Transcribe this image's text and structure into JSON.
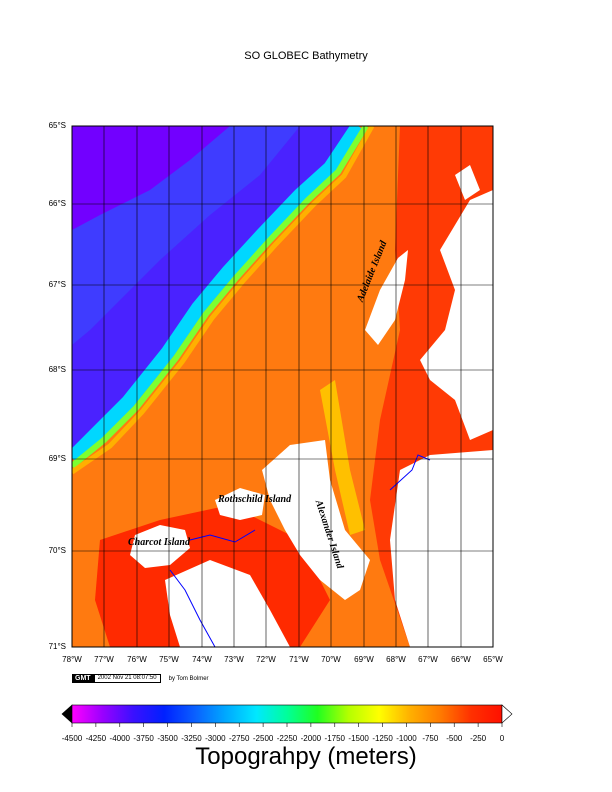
{
  "title": "SO GLOBEC Bathymetry",
  "map": {
    "lat_labels": [
      "65°S",
      "66°S",
      "67°S",
      "68°S",
      "69°S",
      "70°S",
      "71°S"
    ],
    "lon_labels": [
      "78°W",
      "77°W",
      "76°W",
      "75°W",
      "74°W",
      "73°W",
      "72°W",
      "71°W",
      "70°W",
      "69°W",
      "68°W",
      "67°W",
      "66°W",
      "65°W"
    ],
    "island_labels": {
      "adelaide": "Adelaide Island",
      "rothschild": "Rothschild Island",
      "charcot": "Charcot Island",
      "alexander": "Alexander Island"
    },
    "colors": {
      "deep": "#6a00ff",
      "mid_blue": "#1d4dff",
      "slope_cyan": "#00d7ff",
      "shelf_orange": "#ff7a10",
      "shallow_red": "#ff2a00",
      "land": "#ffffff",
      "boundary": "#0000ff"
    }
  },
  "gmt_stamp": {
    "logo": "GMT",
    "date": "2002 Nov 21 08:07:50",
    "author": "by Tom Bolmer"
  },
  "colorbar": {
    "title": "Topograhpy (meters)",
    "tick_labels": [
      "-4500",
      "-4250",
      "-4000",
      "-3750",
      "-3500",
      "-3250",
      "-3000",
      "-2750",
      "-2500",
      "-2250",
      "-2000",
      "-1750",
      "-1500",
      "-1250",
      "-1000",
      "-750",
      "-500",
      "-250",
      "0"
    ],
    "palette": [
      "#ff00ff",
      "#9a00ff",
      "#3a10ff",
      "#0020ff",
      "#0a60ff",
      "#00a8ff",
      "#00e8ff",
      "#00ff9a",
      "#20ff20",
      "#b4ff00",
      "#ffff00",
      "#ffb000",
      "#ff7a00",
      "#ff3000",
      "#ff1000"
    ]
  }
}
